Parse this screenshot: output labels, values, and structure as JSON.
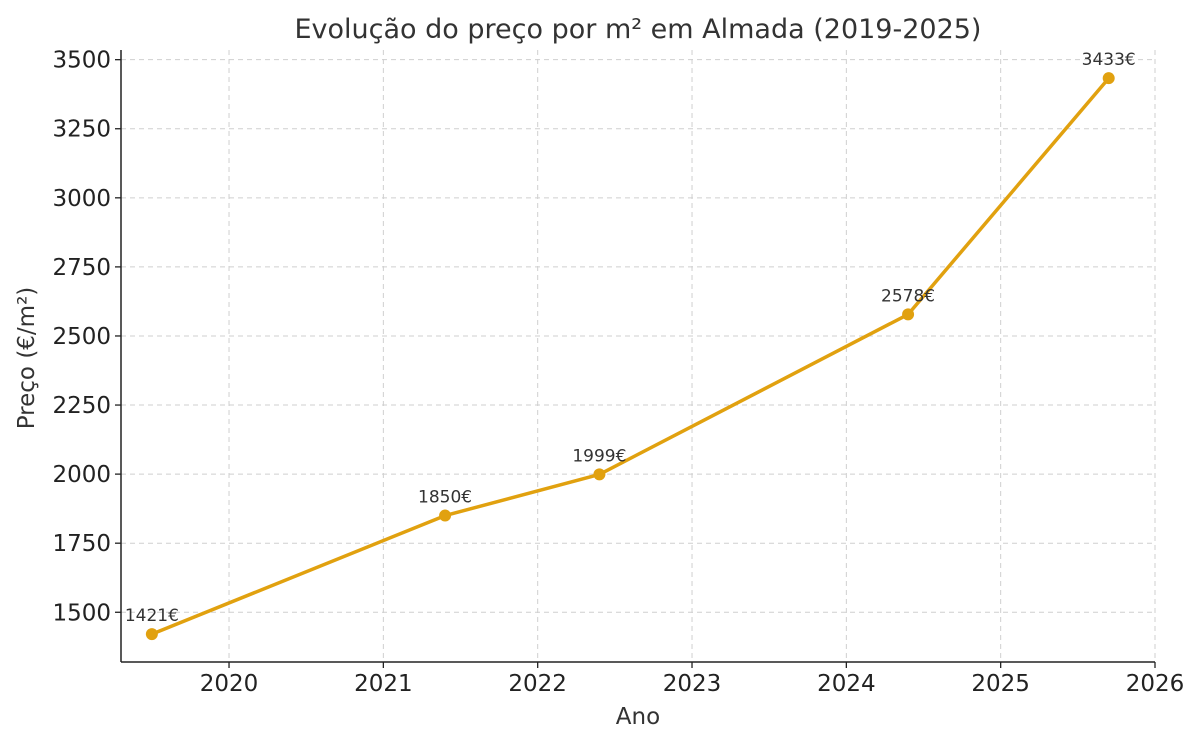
{
  "chart_data": {
    "type": "line",
    "title": "Evolução do preço por m² em Almada (2019-2025)",
    "xlabel": "Ano",
    "ylabel": "Preço (€/m²)",
    "xlim": [
      2019.3,
      2026.0
    ],
    "ylim": [
      1320,
      3535
    ],
    "xticks": [
      2020,
      2021,
      2022,
      2023,
      2024,
      2025,
      2026
    ],
    "yticks": [
      1500,
      1750,
      2000,
      2250,
      2500,
      2750,
      3000,
      3250,
      3500
    ],
    "grid": true,
    "color": "#E1A10F",
    "series": [
      {
        "x": [
          2019.5,
          2021.4,
          2022.4,
          2024.4,
          2025.7
        ],
        "values": [
          1421,
          1850,
          1999,
          2578,
          3433
        ],
        "labels": [
          "1421€",
          "1850€",
          "1999€",
          "2578€",
          "3433€"
        ]
      }
    ]
  }
}
